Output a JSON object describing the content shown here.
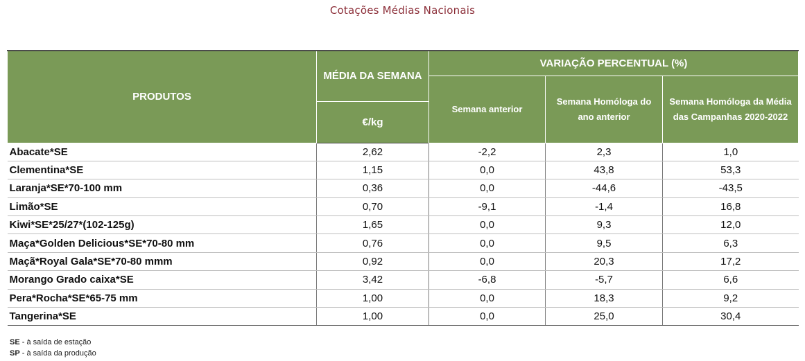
{
  "title": "Cotações Médias Nacionais",
  "headers": {
    "produtos": "PRODUTOS",
    "media": "MÉDIA DA SEMANA",
    "unit": "€/kg",
    "variacao": "VARIAÇÃO PERCENTUAL (%)",
    "semana_anterior": "Semana anterior",
    "homologa_ano": "Semana Homóloga do ano anterior",
    "homologa_campanhas": "Semana Homóloga da Média das Campanhas 2020-2022"
  },
  "rows": [
    {
      "produto": "Abacate*SE",
      "media": "2,62",
      "sem_ant": "-2,2",
      "hom_ano": "2,3",
      "hom_camp": "1,0"
    },
    {
      "produto": "Clementina*SE",
      "media": "1,15",
      "sem_ant": "0,0",
      "hom_ano": "43,8",
      "hom_camp": "53,3"
    },
    {
      "produto": "Laranja*SE*70-100 mm",
      "media": "0,36",
      "sem_ant": "0,0",
      "hom_ano": "-44,6",
      "hom_camp": "-43,5"
    },
    {
      "produto": "Limão*SE",
      "media": "0,70",
      "sem_ant": "-9,1",
      "hom_ano": "-1,4",
      "hom_camp": "16,8"
    },
    {
      "produto": "Kiwi*SE*25/27*(102-125g)",
      "media": "1,65",
      "sem_ant": "0,0",
      "hom_ano": "9,3",
      "hom_camp": "12,0"
    },
    {
      "produto": "Maça*Golden Delicious*SE*70-80 mm",
      "media": "0,76",
      "sem_ant": "0,0",
      "hom_ano": "9,5",
      "hom_camp": "6,3"
    },
    {
      "produto": "Maçã*Royal Gala*SE*70-80 mmm",
      "media": "0,92",
      "sem_ant": "0,0",
      "hom_ano": "20,3",
      "hom_camp": "17,2"
    },
    {
      "produto": "Morango Grado caixa*SE",
      "media": "3,42",
      "sem_ant": "-6,8",
      "hom_ano": "-5,7",
      "hom_camp": "6,6"
    },
    {
      "produto": "Pera*Rocha*SE*65-75 mm",
      "media": "1,00",
      "sem_ant": "0,0",
      "hom_ano": "18,3",
      "hom_camp": "9,2"
    },
    {
      "produto": "Tangerina*SE",
      "media": "1,00",
      "sem_ant": "0,0",
      "hom_ano": "25,0",
      "hom_camp": "30,4"
    }
  ],
  "footnotes": [
    {
      "abbr": "SE",
      "text": " - à saída de estação"
    },
    {
      "abbr": "SP",
      "text": " - à saída da produção"
    }
  ],
  "colors": {
    "header_bg": "#7a9a57",
    "title": "#8c2f39"
  }
}
